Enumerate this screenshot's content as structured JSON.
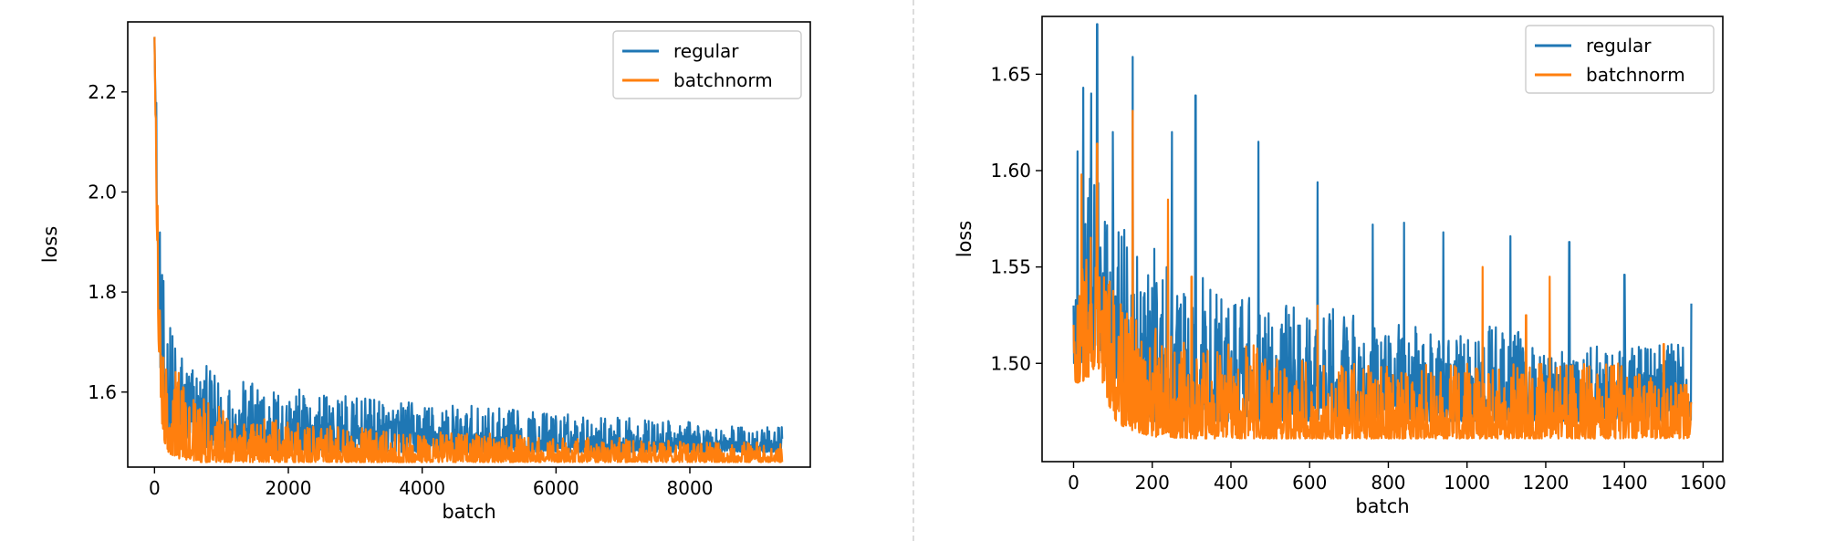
{
  "colors": {
    "regular": "#1f77b4",
    "batchnorm": "#ff7f0e"
  },
  "chart_data": [
    {
      "type": "line",
      "title": "",
      "xlabel": "batch",
      "ylabel": "loss",
      "xlim": [
        -400,
        9800
      ],
      "ylim": [
        1.45,
        2.34
      ],
      "xticks": [
        0,
        2000,
        4000,
        6000,
        8000
      ],
      "yticks": [
        1.6,
        1.8,
        2.0,
        2.2
      ],
      "yticklabels": [
        "1.6",
        "1.8",
        "2.0",
        "2.2"
      ],
      "legend": "top-right",
      "series": [
        {
          "name": "regular",
          "color": "#1f77b4",
          "x": [
            0,
            30,
            60,
            100,
            150,
            200,
            300,
            400,
            500,
            700,
            1000,
            1500,
            2000,
            3000,
            4000,
            5000,
            6000,
            7000,
            8000,
            9000,
            9380
          ],
          "ymin": [
            2.31,
            2.0,
            1.75,
            1.6,
            1.55,
            1.53,
            1.51,
            1.5,
            1.5,
            1.49,
            1.49,
            1.48,
            1.48,
            1.48,
            1.48,
            1.48,
            1.48,
            1.48,
            1.48,
            1.48,
            1.48
          ],
          "ymax": [
            2.31,
            2.2,
            2.0,
            1.88,
            1.8,
            1.76,
            1.72,
            1.7,
            1.68,
            1.66,
            1.63,
            1.62,
            1.61,
            1.59,
            1.58,
            1.57,
            1.56,
            1.55,
            1.54,
            1.53,
            1.53
          ]
        },
        {
          "name": "batchnorm",
          "color": "#ff7f0e",
          "x": [
            0,
            30,
            60,
            100,
            150,
            200,
            300,
            400,
            500,
            700,
            1000,
            1500,
            2000,
            3000,
            4000,
            5000,
            6000,
            7000,
            8000,
            9000,
            9380
          ],
          "ymin": [
            2.31,
            1.95,
            1.7,
            1.55,
            1.5,
            1.48,
            1.47,
            1.465,
            1.465,
            1.46,
            1.46,
            1.46,
            1.46,
            1.46,
            1.46,
            1.46,
            1.46,
            1.46,
            1.46,
            1.46,
            1.46
          ],
          "ymax": [
            2.31,
            2.1,
            1.9,
            1.8,
            1.72,
            1.68,
            1.66,
            1.63,
            1.61,
            1.59,
            1.57,
            1.55,
            1.54,
            1.53,
            1.52,
            1.52,
            1.51,
            1.51,
            1.5,
            1.5,
            1.5
          ]
        }
      ]
    },
    {
      "type": "line",
      "title": "",
      "xlabel": "batch",
      "ylabel": "loss",
      "xlim": [
        -80,
        1650
      ],
      "ylim": [
        1.449,
        1.68
      ],
      "xticks": [
        0,
        200,
        400,
        600,
        800,
        1000,
        1200,
        1400,
        1600
      ],
      "yticks": [
        1.5,
        1.55,
        1.6,
        1.65
      ],
      "yticklabels": [
        "1.50",
        "1.55",
        "1.60",
        "1.65"
      ],
      "legend": "top-right",
      "series": [
        {
          "name": "regular",
          "color": "#1f77b4",
          "x": [
            0,
            30,
            60,
            100,
            150,
            200,
            300,
            400,
            500,
            600,
            700,
            800,
            900,
            1000,
            1100,
            1200,
            1300,
            1400,
            1500,
            1570
          ],
          "ymin": [
            1.5,
            1.5,
            1.51,
            1.49,
            1.48,
            1.47,
            1.47,
            1.47,
            1.47,
            1.47,
            1.47,
            1.47,
            1.47,
            1.47,
            1.47,
            1.47,
            1.47,
            1.47,
            1.47,
            1.47
          ],
          "ymax": [
            1.53,
            1.6,
            1.6,
            1.58,
            1.57,
            1.56,
            1.55,
            1.54,
            1.53,
            1.53,
            1.53,
            1.52,
            1.52,
            1.52,
            1.52,
            1.51,
            1.51,
            1.51,
            1.51,
            1.51
          ],
          "spikes": [
            [
              10,
              1.61
            ],
            [
              25,
              1.643
            ],
            [
              45,
              1.64
            ],
            [
              60,
              1.676
            ],
            [
              100,
              1.62
            ],
            [
              150,
              1.659
            ],
            [
              250,
              1.62
            ],
            [
              310,
              1.639
            ],
            [
              470,
              1.615
            ],
            [
              620,
              1.594
            ],
            [
              760,
              1.572
            ],
            [
              840,
              1.573
            ],
            [
              940,
              1.568
            ],
            [
              1110,
              1.566
            ],
            [
              1260,
              1.563
            ],
            [
              1400,
              1.546
            ],
            [
              1570,
              1.531
            ]
          ]
        },
        {
          "name": "batchnorm",
          "color": "#ff7f0e",
          "x": [
            0,
            30,
            60,
            100,
            150,
            200,
            300,
            400,
            500,
            600,
            700,
            800,
            900,
            1000,
            1100,
            1200,
            1300,
            1400,
            1500,
            1570
          ],
          "ymin": [
            1.49,
            1.49,
            1.5,
            1.47,
            1.465,
            1.462,
            1.461,
            1.461,
            1.461,
            1.461,
            1.461,
            1.461,
            1.461,
            1.461,
            1.461,
            1.461,
            1.461,
            1.461,
            1.461,
            1.461
          ],
          "ymax": [
            1.52,
            1.57,
            1.56,
            1.54,
            1.53,
            1.52,
            1.51,
            1.51,
            1.51,
            1.5,
            1.5,
            1.5,
            1.5,
            1.5,
            1.5,
            1.5,
            1.5,
            1.5,
            1.49,
            1.49
          ],
          "spikes": [
            [
              20,
              1.598
            ],
            [
              60,
              1.614
            ],
            [
              150,
              1.631
            ],
            [
              240,
              1.585
            ],
            [
              300,
              1.545
            ],
            [
              620,
              1.53
            ],
            [
              1040,
              1.55
            ],
            [
              1150,
              1.525
            ],
            [
              1210,
              1.545
            ],
            [
              1500,
              1.51
            ]
          ]
        }
      ]
    }
  ]
}
